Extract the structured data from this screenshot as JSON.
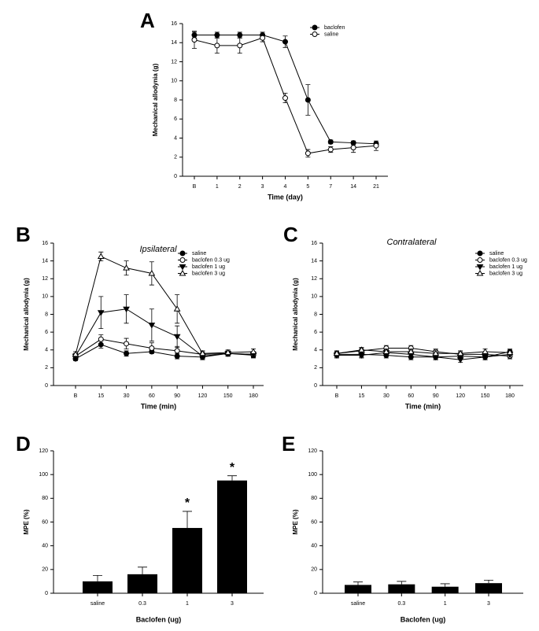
{
  "chart_data": [
    {
      "panel_label": "A",
      "type": "line",
      "categories": [
        "B",
        "1",
        "2",
        "3",
        "4",
        "5",
        "7",
        "14",
        "21"
      ],
      "xlabel": "Time (day)",
      "ylabel": "Mechanical allodynia (g)",
      "ylim": [
        0,
        16
      ],
      "yticks": [
        0,
        2,
        4,
        6,
        8,
        10,
        12,
        14,
        16
      ],
      "legend": "upper right",
      "series": [
        {
          "name": "baclofen",
          "marker": "filled-circle",
          "color": "#000000",
          "values": [
            14.8,
            14.8,
            14.8,
            14.8,
            14.1,
            8.0,
            3.6,
            3.5,
            3.4
          ],
          "errors": [
            0.3,
            0.3,
            0.3,
            0.3,
            0.6,
            1.6,
            0.2,
            0.2,
            0.2
          ]
        },
        {
          "name": "saline",
          "marker": "open-circle",
          "color": "#000000",
          "values": [
            14.3,
            13.7,
            13.7,
            14.5,
            8.2,
            2.4,
            2.8,
            3.0,
            3.2
          ],
          "errors": [
            0.9,
            0.8,
            0.8,
            0.4,
            0.5,
            0.4,
            0.3,
            0.5,
            0.5
          ]
        }
      ]
    },
    {
      "panel_label": "B",
      "type": "line",
      "title": "Ipsilateral",
      "categories": [
        "B",
        "15",
        "30",
        "60",
        "90",
        "120",
        "150",
        "180"
      ],
      "xlabel": "Time (min)",
      "ylabel": "Mechanical allodynia (g)",
      "ylim": [
        0,
        16
      ],
      "yticks": [
        0,
        2,
        4,
        6,
        8,
        10,
        12,
        14,
        16
      ],
      "legend": "upper right",
      "series": [
        {
          "name": "saline",
          "marker": "filled-circle",
          "color": "#000000",
          "values": [
            3.0,
            4.6,
            3.6,
            3.8,
            3.3,
            3.2,
            3.6,
            3.4
          ],
          "errors": [
            0.2,
            0.4,
            0.3,
            0.2,
            0.3,
            0.3,
            0.3,
            0.3
          ]
        },
        {
          "name": "baclofen 0.3 ug",
          "marker": "open-circle",
          "color": "#000000",
          "values": [
            3.3,
            5.2,
            4.7,
            4.2,
            3.9,
            3.5,
            3.6,
            3.5
          ],
          "errors": [
            0.3,
            0.5,
            0.6,
            0.6,
            0.5,
            0.3,
            0.3,
            0.3
          ]
        },
        {
          "name": "baclofen 1 ug",
          "marker": "filled-triangle-down",
          "color": "#000000",
          "values": [
            3.3,
            8.2,
            8.6,
            6.8,
            5.5,
            3.3,
            3.6,
            3.5
          ],
          "errors": [
            0.3,
            1.8,
            1.6,
            1.8,
            1.2,
            0.3,
            0.3,
            0.3
          ]
        },
        {
          "name": "baclofen 3 ug",
          "marker": "open-triangle-up",
          "color": "#000000",
          "values": [
            3.5,
            14.5,
            13.2,
            12.6,
            8.6,
            3.6,
            3.7,
            3.8
          ],
          "errors": [
            0.3,
            0.5,
            0.8,
            1.3,
            1.6,
            0.3,
            0.3,
            0.3
          ]
        }
      ]
    },
    {
      "panel_label": "C",
      "type": "line",
      "title": "Contralateral",
      "categories": [
        "B",
        "15",
        "30",
        "60",
        "90",
        "120",
        "150",
        "180"
      ],
      "xlabel": "Time (min)",
      "ylabel": "Mechanical allodynia (g)",
      "ylim": [
        0,
        16
      ],
      "yticks": [
        0,
        2,
        4,
        6,
        8,
        10,
        12,
        14,
        16
      ],
      "legend": "upper right",
      "series": [
        {
          "name": "saline",
          "marker": "filled-circle",
          "color": "#000000",
          "values": [
            3.5,
            3.5,
            3.4,
            3.2,
            3.2,
            3.3,
            3.2,
            3.8
          ],
          "errors": [
            0.3,
            0.3,
            0.3,
            0.3,
            0.3,
            0.3,
            0.3,
            0.3
          ]
        },
        {
          "name": "baclofen 0.3 ug",
          "marker": "open-circle",
          "color": "#000000",
          "values": [
            3.6,
            3.9,
            4.2,
            4.2,
            3.8,
            3.5,
            3.5,
            3.3
          ],
          "errors": [
            0.3,
            0.3,
            0.3,
            0.3,
            0.3,
            0.3,
            0.3,
            0.3
          ]
        },
        {
          "name": "baclofen 1 ug",
          "marker": "filled-triangle-down",
          "color": "#000000",
          "values": [
            3.4,
            3.4,
            3.7,
            3.5,
            3.2,
            2.9,
            3.2,
            3.5
          ],
          "errors": [
            0.3,
            0.3,
            0.3,
            0.3,
            0.3,
            0.3,
            0.3,
            0.3
          ]
        },
        {
          "name": "baclofen 3 ug",
          "marker": "open-triangle-up",
          "color": "#000000",
          "values": [
            3.6,
            4.0,
            3.8,
            3.8,
            3.6,
            3.6,
            3.8,
            3.7
          ],
          "errors": [
            0.3,
            0.3,
            0.3,
            0.3,
            0.3,
            0.3,
            0.3,
            0.3
          ]
        }
      ]
    },
    {
      "panel_label": "D",
      "type": "bar",
      "categories": [
        "saline",
        "0.3",
        "1",
        "3"
      ],
      "xlabel": "Baclofen (ug)",
      "ylabel": "MPE (%)",
      "ylim": [
        0,
        120
      ],
      "yticks": [
        0,
        20,
        40,
        60,
        80,
        100,
        120
      ],
      "color": "#000000",
      "values": [
        10,
        16,
        55,
        95
      ],
      "errors": [
        5,
        6,
        14,
        4
      ],
      "annotations": [
        {
          "text": "*",
          "category": "1"
        },
        {
          "text": "*",
          "category": "3"
        }
      ]
    },
    {
      "panel_label": "E",
      "type": "bar",
      "categories": [
        "saline",
        "0.3",
        "1",
        "3"
      ],
      "xlabel": "Baclofen (ug)",
      "ylabel": "MPE (%)",
      "ylim": [
        0,
        120
      ],
      "yticks": [
        0,
        20,
        40,
        60,
        80,
        100,
        120
      ],
      "color": "#000000",
      "values": [
        7,
        7.5,
        5.5,
        8.5
      ],
      "errors": [
        2.5,
        2.5,
        2.5,
        2.5
      ]
    }
  ]
}
